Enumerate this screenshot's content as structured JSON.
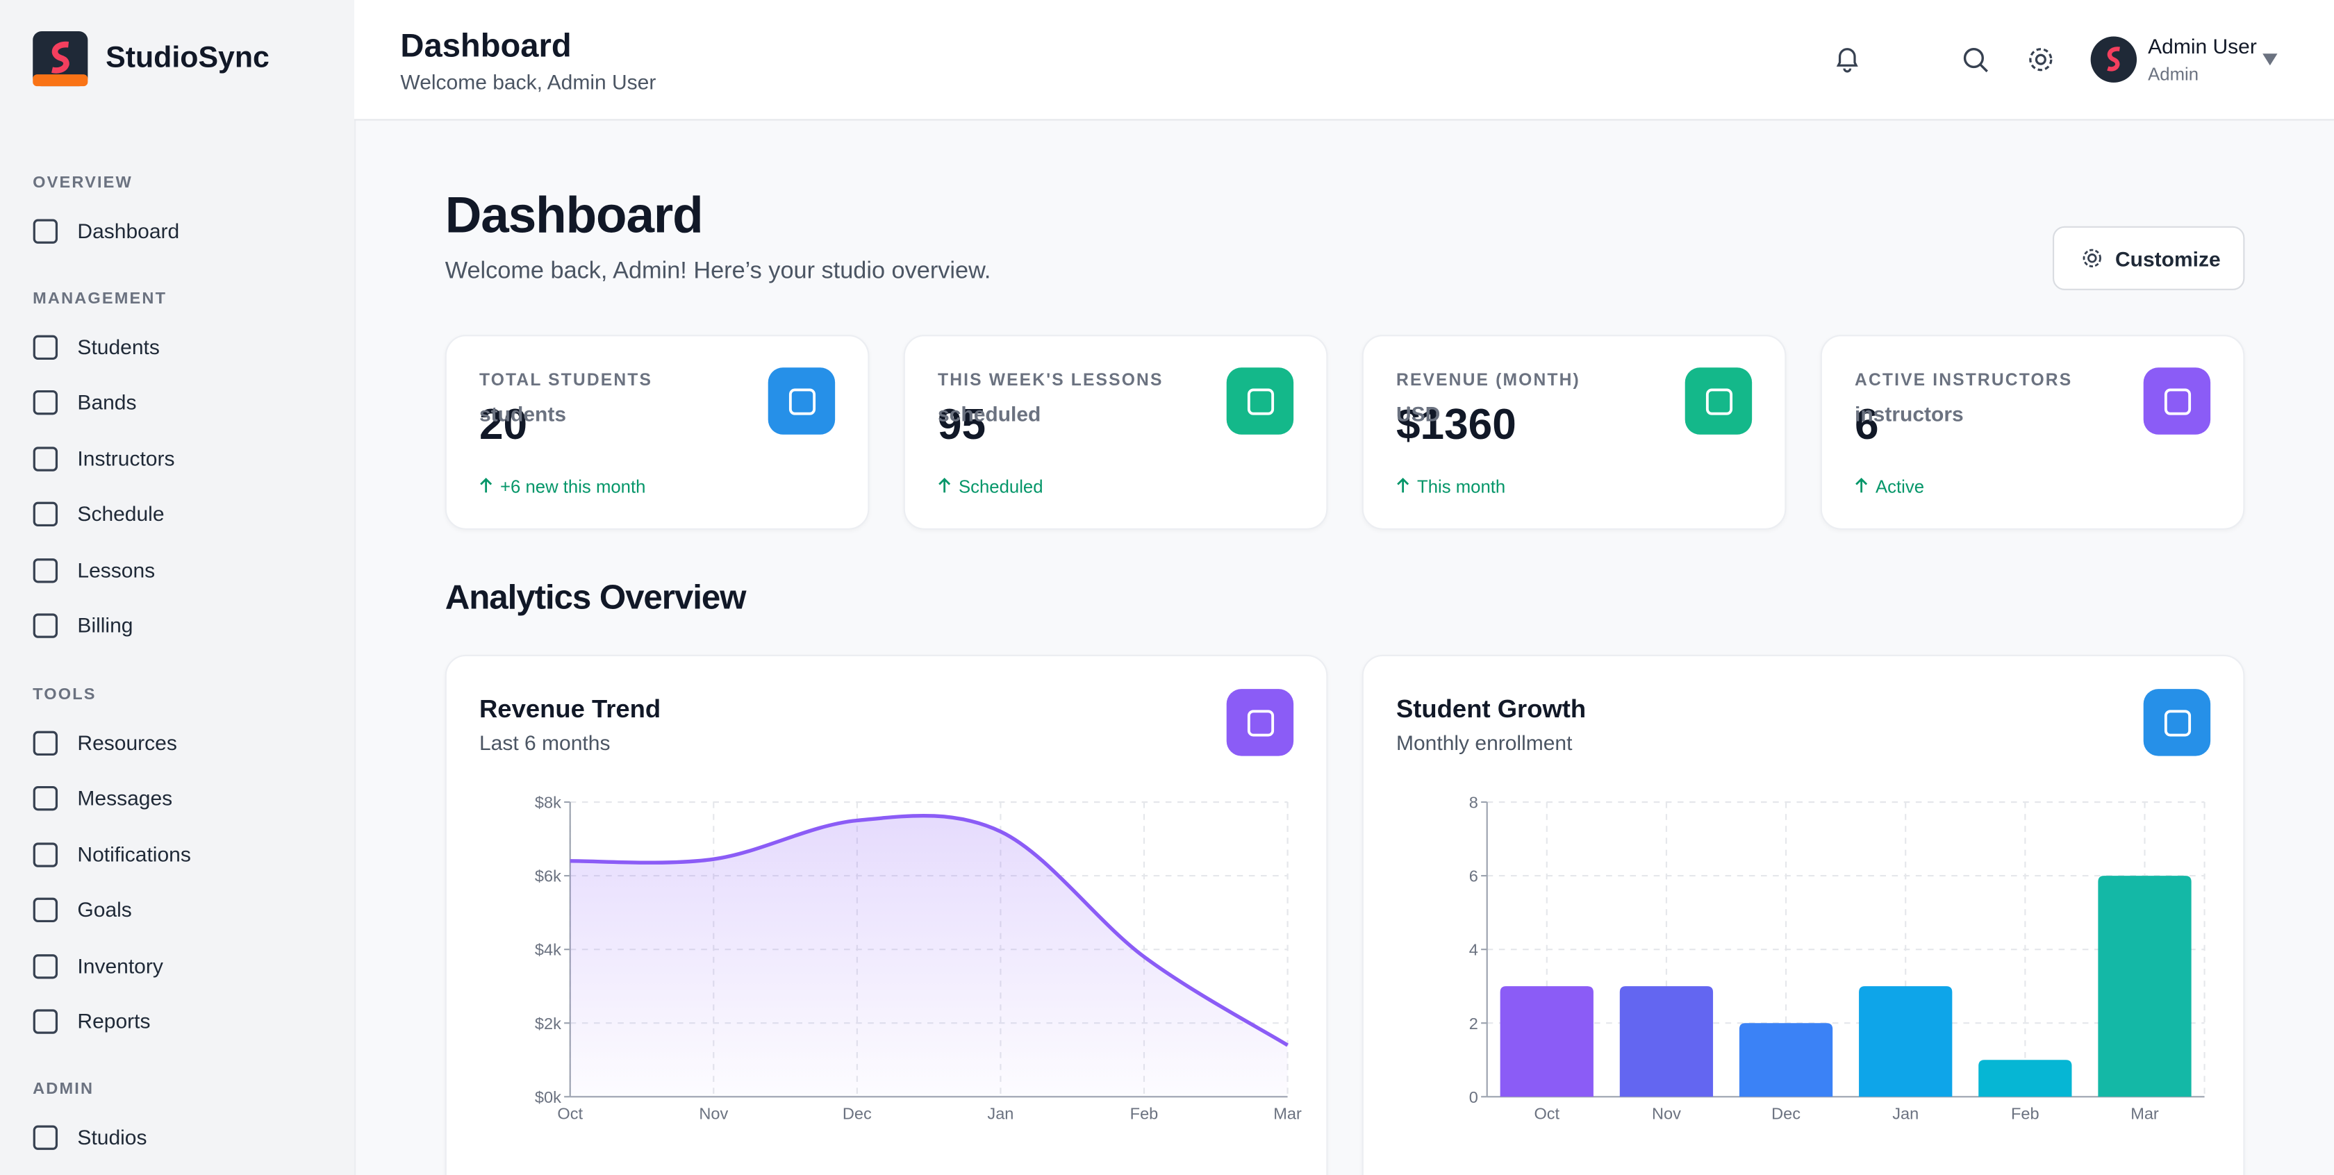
{
  "sidebar": {
    "brand": "StudioSync",
    "sections": [
      {
        "title": "OVERVIEW",
        "items": [
          "Dashboard"
        ]
      },
      {
        "title": "MANAGEMENT",
        "items": [
          "Students",
          "Bands",
          "Instructors",
          "Schedule",
          "Lessons",
          "Billing"
        ]
      },
      {
        "title": "TOOLS",
        "items": [
          "Resources",
          "Messages",
          "Notifications",
          "Goals",
          "Inventory",
          "Reports"
        ]
      },
      {
        "title": "ADMIN",
        "items": [
          "Studios"
        ]
      }
    ]
  },
  "header": {
    "title": "Dashboard",
    "subtitle": "Welcome back, Admin User",
    "user_name": "Admin User",
    "user_role": "Admin"
  },
  "page": {
    "title": "Dashboard",
    "subtitle": "Welcome back, Admin! Here’s your studio overview.",
    "button": "Customize",
    "section_title": "Analytics Overview"
  },
  "stats": [
    {
      "label": "TOTAL STUDENTS",
      "value": 20,
      "unit": "students",
      "note": "+6 new this month",
      "color": "#2690e8"
    },
    {
      "label": "THIS WEEK'S LESSONS",
      "value": 95,
      "unit": "scheduled",
      "note": "Scheduled",
      "color": "#14b88a"
    },
    {
      "label": "REVENUE (MONTH)",
      "value": "$1360",
      "unit": "USD",
      "note": "This month",
      "color": "#14b88a"
    },
    {
      "label": "ACTIVE INSTRUCTORS",
      "value": 6,
      "unit": "instructors",
      "note": "Active",
      "color": "#8b5cf6"
    }
  ],
  "chart_data": [
    {
      "type": "line",
      "title": "Revenue Trend",
      "subtitle": "Last 6 months",
      "categories": [
        "Oct",
        "Nov",
        "Dec",
        "Jan",
        "Feb",
        "Mar"
      ],
      "values": [
        6400,
        6450,
        7500,
        7200,
        3800,
        1400
      ],
      "color": "#8b5cf6",
      "ylim": [
        0,
        8000
      ],
      "yticks": [
        {
          "value": 0,
          "label": "$0k"
        },
        {
          "value": 2000,
          "label": "$2k"
        },
        {
          "value": 4000,
          "label": "$4k"
        },
        {
          "value": 6000,
          "label": "$6k"
        },
        {
          "value": 8000,
          "label": "$8k"
        }
      ],
      "grid": true
    },
    {
      "type": "bar",
      "title": "Student Growth",
      "subtitle": "Monthly enrollment",
      "categories": [
        "Oct",
        "Nov",
        "Dec",
        "Jan",
        "Feb",
        "Mar"
      ],
      "values": [
        3,
        3,
        2,
        3,
        1,
        6
      ],
      "colors": [
        "#8b5cf6",
        "#6366f1",
        "#3b82f6",
        "#0ea5e9",
        "#06b6d4",
        "#14b8a6"
      ],
      "ylim": [
        0,
        8
      ],
      "yticks": [
        0,
        2,
        4,
        6,
        8
      ],
      "grid": true
    }
  ]
}
